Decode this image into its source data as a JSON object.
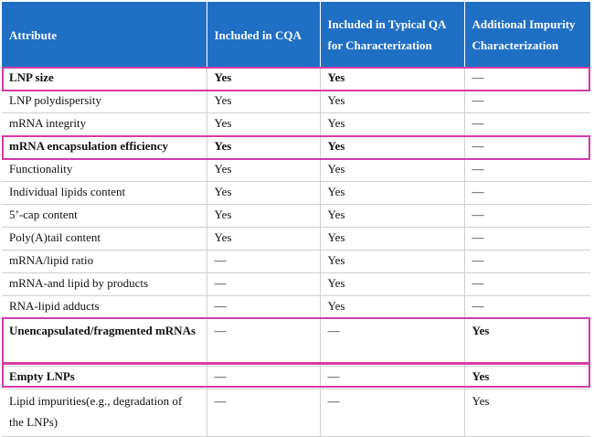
{
  "header": {
    "attribute": "Attribute",
    "cqa": "Included in CQA",
    "typical_qa": "Included in Typical QA for Characterization",
    "impurity": "Additional Impurity Characterization"
  },
  "rows": [
    {
      "attribute": "LNP size",
      "cqa": "Yes",
      "qa": "Yes",
      "imp": "—"
    },
    {
      "attribute": "LNP polydispersity",
      "cqa": "Yes",
      "qa": "Yes",
      "imp": "—"
    },
    {
      "attribute": "mRNA integrity",
      "cqa": "Yes",
      "qa": "Yes",
      "imp": "—"
    },
    {
      "attribute": "mRNA encapsulation efficiency",
      "cqa": "Yes",
      "qa": "Yes",
      "imp": "—"
    },
    {
      "attribute": "Functionality",
      "cqa": "Yes",
      "qa": "Yes",
      "imp": "—"
    },
    {
      "attribute": "Individual lipids content",
      "cqa": "Yes",
      "qa": "Yes",
      "imp": "—"
    },
    {
      "attribute": "5’-cap content",
      "cqa": "Yes",
      "qa": "Yes",
      "imp": "—"
    },
    {
      "attribute": "Poly(A)tail content",
      "cqa": "Yes",
      "qa": "Yes",
      "imp": "—"
    },
    {
      "attribute": "mRNA/lipid ratio",
      "cqa": "—",
      "qa": "Yes",
      "imp": "—"
    },
    {
      "attribute": "mRNA-and lipid by products",
      "cqa": "—",
      "qa": "Yes",
      "imp": "—"
    },
    {
      "attribute": "RNA-lipid adducts",
      "cqa": "—",
      "qa": "Yes",
      "imp": "—"
    },
    {
      "attribute": "Unencapsulated/fragmented mRNAs",
      "cqa": "—",
      "qa": "—",
      "imp": "Yes"
    },
    {
      "attribute": "Empty LNPs",
      "cqa": "—",
      "qa": "—",
      "imp": "Yes"
    },
    {
      "attribute": "Lipid impurities(e.g., degradation of the LNPs)",
      "cqa": "—",
      "qa": "—",
      "imp": "Yes"
    }
  ],
  "colors": {
    "header_bg": "#1f6fc5",
    "highlight": "#d63aa8"
  }
}
